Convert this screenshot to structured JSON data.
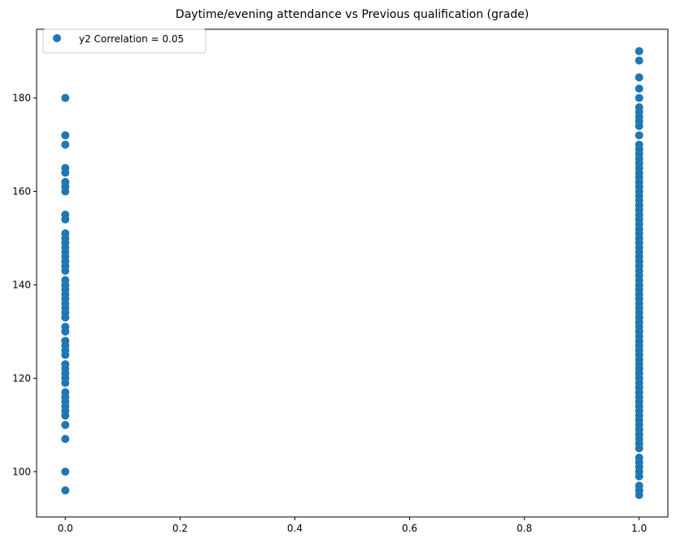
{
  "chart_data": {
    "type": "scatter",
    "title": "Daytime/evening attendance\t vs Previous qualification (grade)",
    "xlabel": "",
    "ylabel": "",
    "xlim": [
      -0.05,
      1.05
    ],
    "ylim": [
      90.3,
      194.7
    ],
    "xticks": [
      0.0,
      0.2,
      0.4,
      0.6,
      0.8,
      1.0
    ],
    "xtick_labels": [
      "0.0",
      "0.2",
      "0.4",
      "0.6",
      "0.8",
      "1.0"
    ],
    "yticks": [
      100,
      120,
      140,
      160,
      180
    ],
    "ytick_labels": [
      "100",
      "120",
      "140",
      "160",
      "180"
    ],
    "grid": false,
    "legend_position": "upper-left",
    "series": [
      {
        "name": "y2 Correlation = 0.05",
        "color": "#1f77b4",
        "points": [
          {
            "x": 0,
            "y": 96
          },
          {
            "x": 0,
            "y": 100
          },
          {
            "x": 0,
            "y": 107
          },
          {
            "x": 0,
            "y": 110
          },
          {
            "x": 0,
            "y": 112
          },
          {
            "x": 0,
            "y": 113
          },
          {
            "x": 0,
            "y": 114
          },
          {
            "x": 0,
            "y": 115
          },
          {
            "x": 0,
            "y": 116
          },
          {
            "x": 0,
            "y": 117
          },
          {
            "x": 0,
            "y": 119
          },
          {
            "x": 0,
            "y": 120
          },
          {
            "x": 0,
            "y": 121
          },
          {
            "x": 0,
            "y": 122
          },
          {
            "x": 0,
            "y": 123
          },
          {
            "x": 0,
            "y": 125
          },
          {
            "x": 0,
            "y": 126
          },
          {
            "x": 0,
            "y": 127
          },
          {
            "x": 0,
            "y": 128
          },
          {
            "x": 0,
            "y": 130
          },
          {
            "x": 0,
            "y": 131
          },
          {
            "x": 0,
            "y": 133
          },
          {
            "x": 0,
            "y": 134
          },
          {
            "x": 0,
            "y": 135
          },
          {
            "x": 0,
            "y": 136
          },
          {
            "x": 0,
            "y": 137
          },
          {
            "x": 0,
            "y": 138
          },
          {
            "x": 0,
            "y": 139
          },
          {
            "x": 0,
            "y": 140
          },
          {
            "x": 0,
            "y": 141
          },
          {
            "x": 0,
            "y": 143
          },
          {
            "x": 0,
            "y": 144
          },
          {
            "x": 0,
            "y": 145
          },
          {
            "x": 0,
            "y": 146
          },
          {
            "x": 0,
            "y": 147
          },
          {
            "x": 0,
            "y": 148
          },
          {
            "x": 0,
            "y": 149
          },
          {
            "x": 0,
            "y": 150
          },
          {
            "x": 0,
            "y": 151
          },
          {
            "x": 0,
            "y": 154
          },
          {
            "x": 0,
            "y": 155
          },
          {
            "x": 0,
            "y": 160
          },
          {
            "x": 0,
            "y": 161
          },
          {
            "x": 0,
            "y": 162
          },
          {
            "x": 0,
            "y": 164
          },
          {
            "x": 0,
            "y": 165
          },
          {
            "x": 0,
            "y": 170
          },
          {
            "x": 0,
            "y": 172
          },
          {
            "x": 0,
            "y": 180
          },
          {
            "x": 1,
            "y": 95
          },
          {
            "x": 1,
            "y": 96
          },
          {
            "x": 1,
            "y": 97
          },
          {
            "x": 1,
            "y": 99
          },
          {
            "x": 1,
            "y": 100
          },
          {
            "x": 1,
            "y": 101
          },
          {
            "x": 1,
            "y": 102
          },
          {
            "x": 1,
            "y": 103
          },
          {
            "x": 1,
            "y": 105
          },
          {
            "x": 1,
            "y": 106
          },
          {
            "x": 1,
            "y": 107
          },
          {
            "x": 1,
            "y": 108
          },
          {
            "x": 1,
            "y": 109
          },
          {
            "x": 1,
            "y": 110
          },
          {
            "x": 1,
            "y": 111
          },
          {
            "x": 1,
            "y": 112
          },
          {
            "x": 1,
            "y": 113
          },
          {
            "x": 1,
            "y": 114
          },
          {
            "x": 1,
            "y": 115
          },
          {
            "x": 1,
            "y": 116
          },
          {
            "x": 1,
            "y": 117
          },
          {
            "x": 1,
            "y": 118
          },
          {
            "x": 1,
            "y": 119
          },
          {
            "x": 1,
            "y": 120
          },
          {
            "x": 1,
            "y": 121
          },
          {
            "x": 1,
            "y": 122
          },
          {
            "x": 1,
            "y": 123
          },
          {
            "x": 1,
            "y": 124
          },
          {
            "x": 1,
            "y": 125
          },
          {
            "x": 1,
            "y": 126
          },
          {
            "x": 1,
            "y": 127
          },
          {
            "x": 1,
            "y": 128
          },
          {
            "x": 1,
            "y": 129
          },
          {
            "x": 1,
            "y": 130
          },
          {
            "x": 1,
            "y": 131
          },
          {
            "x": 1,
            "y": 132
          },
          {
            "x": 1,
            "y": 133
          },
          {
            "x": 1,
            "y": 134
          },
          {
            "x": 1,
            "y": 135
          },
          {
            "x": 1,
            "y": 136
          },
          {
            "x": 1,
            "y": 137
          },
          {
            "x": 1,
            "y": 138
          },
          {
            "x": 1,
            "y": 139
          },
          {
            "x": 1,
            "y": 140
          },
          {
            "x": 1,
            "y": 141
          },
          {
            "x": 1,
            "y": 142
          },
          {
            "x": 1,
            "y": 143
          },
          {
            "x": 1,
            "y": 144
          },
          {
            "x": 1,
            "y": 145
          },
          {
            "x": 1,
            "y": 146
          },
          {
            "x": 1,
            "y": 147
          },
          {
            "x": 1,
            "y": 148
          },
          {
            "x": 1,
            "y": 149
          },
          {
            "x": 1,
            "y": 150
          },
          {
            "x": 1,
            "y": 151
          },
          {
            "x": 1,
            "y": 152
          },
          {
            "x": 1,
            "y": 153
          },
          {
            "x": 1,
            "y": 154
          },
          {
            "x": 1,
            "y": 155
          },
          {
            "x": 1,
            "y": 156
          },
          {
            "x": 1,
            "y": 157
          },
          {
            "x": 1,
            "y": 158
          },
          {
            "x": 1,
            "y": 159
          },
          {
            "x": 1,
            "y": 160
          },
          {
            "x": 1,
            "y": 161
          },
          {
            "x": 1,
            "y": 162
          },
          {
            "x": 1,
            "y": 163
          },
          {
            "x": 1,
            "y": 164
          },
          {
            "x": 1,
            "y": 165
          },
          {
            "x": 1,
            "y": 166
          },
          {
            "x": 1,
            "y": 167
          },
          {
            "x": 1,
            "y": 168
          },
          {
            "x": 1,
            "y": 169
          },
          {
            "x": 1,
            "y": 170
          },
          {
            "x": 1,
            "y": 172
          },
          {
            "x": 1,
            "y": 174
          },
          {
            "x": 1,
            "y": 175
          },
          {
            "x": 1,
            "y": 176
          },
          {
            "x": 1,
            "y": 177
          },
          {
            "x": 1,
            "y": 178
          },
          {
            "x": 1,
            "y": 180
          },
          {
            "x": 1,
            "y": 182
          },
          {
            "x": 1,
            "y": 184.4
          },
          {
            "x": 1,
            "y": 188
          },
          {
            "x": 1,
            "y": 190
          }
        ]
      }
    ]
  }
}
